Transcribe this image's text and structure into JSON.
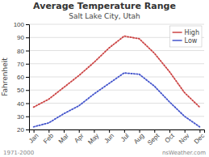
{
  "chart_data": {
    "type": "line",
    "title": "Average Temperature Range",
    "subtitle": "Salt Lake City, Utah",
    "y_label": "Fahrenheit",
    "annotations": [
      "1971-2000",
      "nsWeather.com"
    ],
    "categories": [
      "Jan",
      "Feb",
      "Mar",
      "Apr",
      "May",
      "Jun",
      "Jul",
      "Aug",
      "Sept",
      "Oct",
      "Nov",
      "Dec"
    ],
    "series": [
      {
        "name": "High",
        "color": "#cc4444",
        "line_style": "dotted",
        "values": [
          37,
          43,
          52,
          61,
          71,
          82,
          91,
          89,
          78,
          64,
          48,
          37
        ]
      },
      {
        "name": "Low",
        "color": "#4455cc",
        "line_style": "dotted",
        "values": [
          22,
          25,
          32,
          38,
          47,
          55,
          63,
          62,
          53,
          41,
          30,
          22
        ]
      }
    ],
    "ylim": [
      20,
      100
    ],
    "yticks": [
      20,
      30,
      40,
      50,
      60,
      70,
      80,
      90,
      100
    ],
    "grid": true,
    "legend": "upper right"
  }
}
